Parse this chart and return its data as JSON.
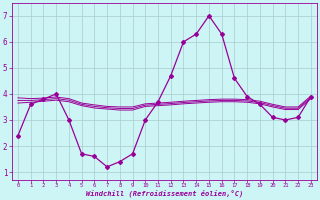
{
  "x": [
    0,
    1,
    2,
    3,
    4,
    5,
    6,
    7,
    8,
    9,
    10,
    11,
    12,
    13,
    14,
    15,
    16,
    17,
    18,
    19,
    20,
    21,
    22,
    23
  ],
  "line1": [
    2.4,
    3.6,
    3.8,
    4.0,
    3.0,
    1.7,
    1.6,
    1.2,
    1.4,
    1.7,
    3.0,
    3.7,
    4.7,
    6.0,
    6.3,
    7.0,
    6.3,
    4.6,
    3.9,
    3.6,
    3.1,
    3.0,
    3.1,
    3.9
  ],
  "line2": [
    3.85,
    3.82,
    3.84,
    3.88,
    3.82,
    3.65,
    3.58,
    3.52,
    3.5,
    3.5,
    3.62,
    3.65,
    3.68,
    3.72,
    3.75,
    3.78,
    3.8,
    3.8,
    3.78,
    3.72,
    3.6,
    3.5,
    3.5,
    3.92
  ],
  "line3": [
    3.75,
    3.75,
    3.78,
    3.82,
    3.76,
    3.6,
    3.52,
    3.47,
    3.44,
    3.44,
    3.57,
    3.6,
    3.63,
    3.67,
    3.7,
    3.73,
    3.75,
    3.75,
    3.73,
    3.67,
    3.55,
    3.45,
    3.45,
    3.87
  ],
  "line4": [
    3.65,
    3.68,
    3.72,
    3.76,
    3.7,
    3.55,
    3.46,
    3.42,
    3.38,
    3.38,
    3.52,
    3.55,
    3.58,
    3.62,
    3.65,
    3.68,
    3.7,
    3.7,
    3.68,
    3.62,
    3.5,
    3.4,
    3.4,
    3.82
  ],
  "line_color": "#990099",
  "bg_color": "#cef5f5",
  "grid_color": "#aacccc",
  "ylim": [
    0.7,
    7.5
  ],
  "xlim": [
    -0.5,
    23.5
  ],
  "yticks": [
    1,
    2,
    3,
    4,
    5,
    6,
    7
  ],
  "xticks": [
    0,
    1,
    2,
    3,
    4,
    5,
    6,
    7,
    8,
    9,
    10,
    11,
    12,
    13,
    14,
    15,
    16,
    17,
    18,
    19,
    20,
    21,
    22,
    23
  ],
  "xlabel": "Windchill (Refroidissement éolien,°C)",
  "axis_color": "#990099"
}
